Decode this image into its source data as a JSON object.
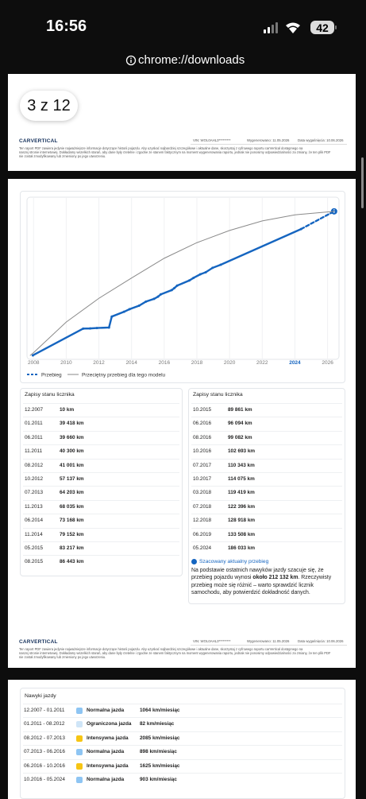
{
  "status_bar": {
    "time": "16:56",
    "battery": "42"
  },
  "url": "chrome://downloads",
  "page_badge": "3 z 12",
  "footer": {
    "logo": "CARVERTICAL",
    "vin": "VIN: WOL0AHL3*********",
    "generated": "Wygenerowano: 11.05.2026",
    "expires": "Data wygaśnięcia: 10.06.2026",
    "disclaimer": [
      "Ten raport PDF zawiera jedynie najważniejsze informacje dotyczące historii pojazdu. Aby uzyskać najbardziej szczegółowe i aktualne dane, skorzystaj z cyfrowego raportu carVertical dostępnego na",
      "naszej stronie internetowej. Dokładamy wszelkich starań, aby dane były rzetelne i zgodne ze stanem faktycznym na moment wygenerowania raportu, jednak nie ponosimy odpowiedzialności za zmiany, że ten plik PDF",
      "nie został zmodyfikowany lub zmieniony po jego utworzeniu."
    ]
  },
  "chart_data": {
    "type": "line",
    "xlim": [
      2007.6,
      2026.7
    ],
    "xticks": [
      2008,
      2010,
      2012,
      2014,
      2016,
      2018,
      2020,
      2022,
      2024,
      2026
    ],
    "highlight_xtick": 2024,
    "ylim": [
      0,
      233000
    ],
    "grid": true,
    "series": [
      {
        "name": "Przebieg",
        "color": "#1565c0",
        "dash_after_index": 22,
        "x": [
          2007.96,
          2011.04,
          2011.46,
          2011.88,
          2012.62,
          2012.79,
          2013.54,
          2013.88,
          2014.46,
          2014.88,
          2015.38,
          2015.62,
          2015.79,
          2016.46,
          2016.62,
          2016.79,
          2017.54,
          2017.79,
          2018.21,
          2018.54,
          2018.96,
          2019.46,
          2024.38,
          2026.4
        ],
        "values": [
          10,
          39418,
          39660,
          40300,
          41001,
          57137,
          64203,
          68035,
          73168,
          79152,
          83217,
          86443,
          89861,
          96094,
          99082,
          102693,
          110343,
          114075,
          119419,
          122396,
          128918,
          133508,
          186033,
          212132
        ]
      },
      {
        "name": "Przeciętny przebieg dla tego modelu",
        "color": "#8a8a8a",
        "x": [
          2007.8,
          2008,
          2010,
          2012,
          2014,
          2016,
          2018,
          2020,
          2022,
          2024,
          2026.4
        ],
        "values": [
          0,
          4000,
          49000,
          84000,
          114000,
          143000,
          166000,
          184000,
          198000,
          207000,
          212132
        ]
      }
    ]
  },
  "odometer_left": {
    "title": "Zapisy stanu licznika",
    "rows": [
      [
        "12.2007",
        "10 km"
      ],
      [
        "01.2011",
        "39 418 km"
      ],
      [
        "06.2011",
        "39 660 km"
      ],
      [
        "11.2011",
        "40 300 km"
      ],
      [
        "08.2012",
        "41 001 km"
      ],
      [
        "10.2012",
        "57 137 km"
      ],
      [
        "07.2013",
        "64 203 km"
      ],
      [
        "11.2013",
        "68 035 km"
      ],
      [
        "06.2014",
        "73 168 km"
      ],
      [
        "11.2014",
        "79 152 km"
      ],
      [
        "05.2015",
        "83 217 km"
      ],
      [
        "08.2015",
        "86 443 km"
      ]
    ]
  },
  "odometer_right": {
    "title": "Zapisy stanu licznika",
    "rows": [
      [
        "10.2015",
        "89 861 km"
      ],
      [
        "06.2016",
        "96 094 km"
      ],
      [
        "08.2016",
        "99 082 km"
      ],
      [
        "10.2016",
        "102 693 km"
      ],
      [
        "07.2017",
        "110 343 km"
      ],
      [
        "10.2017",
        "114 075 km"
      ],
      [
        "03.2018",
        "119 419 km"
      ],
      [
        "07.2018",
        "122 396 km"
      ],
      [
        "12.2018",
        "128 918 km"
      ],
      [
        "06.2019",
        "133 508 km"
      ],
      [
        "05.2024",
        "186 033 km"
      ]
    ]
  },
  "estimate": {
    "title": "Szacowany aktualny przebieg",
    "text_before": "Na podstawie ostatnich nawyków jazdy szacuje się, że przebieg pojazdu wynosi ",
    "text_bold": "około 212 132 km",
    "text_after": ". Rzeczywisty przebieg może się różnić – warto sprawdzić licznik samochodu, aby potwierdzić dokładność danych."
  },
  "driving_habits": {
    "title": "Nawyki jazdy",
    "rows": [
      {
        "period": "12.2007 - 01.2011",
        "label": "Normalna jazda",
        "value": "1064 km/miesiąc",
        "color": "#8ec5f3"
      },
      {
        "period": "01.2011 - 08.2012",
        "label": "Ograniczona jazda",
        "value": "82 km/miesiąc",
        "color": "#cfe5f7"
      },
      {
        "period": "08.2012 - 07.2013",
        "label": "Intensywna jazda",
        "value": "2085 km/miesiąc",
        "color": "#f6c514"
      },
      {
        "period": "07.2013 - 06.2016",
        "label": "Normalna jazda",
        "value": "898 km/miesiąc",
        "color": "#8ec5f3"
      },
      {
        "period": "06.2016 - 10.2016",
        "label": "Intensywna jazda",
        "value": "1625 km/miesiąc",
        "color": "#f6c514"
      },
      {
        "period": "10.2016 - 05.2024",
        "label": "Normalna jazda",
        "value": "903 km/miesiąc",
        "color": "#8ec5f3"
      }
    ]
  }
}
